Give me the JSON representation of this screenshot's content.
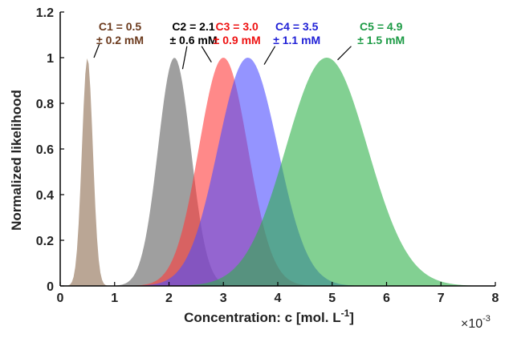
{
  "chart_data": {
    "type": "area",
    "title": "",
    "xlabel": "Concentration: c [mol. L",
    "xlabel_superscript": "-1",
    "xlabel_suffix": "]",
    "ylabel": "Normalized likelihood",
    "x_exponent_label": "×10",
    "x_exponent_power": "-3",
    "xlim": [
      0,
      8
    ],
    "ylim": [
      0,
      1.2
    ],
    "xticks": [
      0,
      1,
      2,
      3,
      4,
      5,
      6,
      7,
      8
    ],
    "yticks": [
      0,
      0.2,
      0.4,
      0.6,
      0.8,
      1,
      1.2
    ],
    "grid": false,
    "legend": "none",
    "series": [
      {
        "name": "C1",
        "mean": 0.5,
        "sd": 0.1,
        "color": "#8c6a4f",
        "label_line1": "C1 = 0.5",
        "label_line2": "± 0.2 mM",
        "label_color": "#6b3a1d",
        "label_x": 1.1,
        "label_y": 1.12,
        "pointer": [
          [
            0.62,
            1.0
          ],
          [
            0.72,
            1.06
          ]
        ]
      },
      {
        "name": "C2",
        "mean": 2.1,
        "sd": 0.3,
        "color": "#5f5f5f",
        "label_line1": "C2 = 2.1",
        "label_line2": "± 0.6 mM",
        "label_color": "#000000",
        "label_x": 2.45,
        "label_y": 1.12,
        "pointer": [
          [
            2.25,
            0.95
          ],
          [
            2.33,
            1.05
          ]
        ]
      },
      {
        "name": "C3",
        "mean": 3.0,
        "sd": 0.45,
        "color": "#ff3b3b",
        "label_line1": "C3 = 3.0",
        "label_line2": "± 0.9 mM",
        "label_color": "#ee1111",
        "label_x": 3.25,
        "label_y": 1.12,
        "pointer": [
          [
            2.78,
            0.98
          ],
          [
            2.6,
            1.05
          ]
        ]
      },
      {
        "name": "C4",
        "mean": 3.45,
        "sd": 0.55,
        "color": "#4d4dff",
        "label_line1": "C4 = 3.5",
        "label_line2": "± 1.1 mM",
        "label_color": "#1f1fd6",
        "label_x": 4.35,
        "label_y": 1.12,
        "pointer": [
          [
            3.75,
            0.97
          ],
          [
            3.95,
            1.05
          ]
        ]
      },
      {
        "name": "C5",
        "mean": 4.9,
        "sd": 0.75,
        "color": "#2eb04a",
        "label_line1": "C5 = 4.9",
        "label_line2": "± 1.5 mM",
        "label_color": "#1b9a44",
        "label_x": 5.9,
        "label_y": 1.12,
        "pointer": [
          [
            5.1,
            0.99
          ],
          [
            5.35,
            1.05
          ]
        ]
      }
    ]
  }
}
